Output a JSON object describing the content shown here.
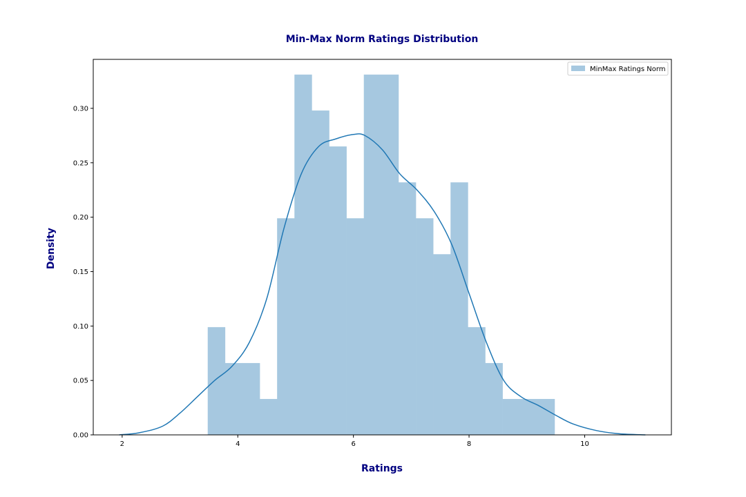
{
  "chart_data": {
    "type": "bar",
    "title": "Min-Max Norm Ratings Distribution",
    "xlabel": "Ratings",
    "ylabel": "Density",
    "xlim": [
      1.5,
      11.5
    ],
    "ylim": [
      0,
      0.345
    ],
    "x_ticks": [
      2,
      4,
      6,
      8,
      10
    ],
    "x_tick_labels": [
      "2",
      "4",
      "6",
      "8",
      "10"
    ],
    "y_ticks": [
      0.0,
      0.05,
      0.1,
      0.15,
      0.2,
      0.25,
      0.3
    ],
    "y_tick_labels": [
      "0.00",
      "0.05",
      "0.10",
      "0.15",
      "0.20",
      "0.25",
      "0.30"
    ],
    "grid": false,
    "legend": {
      "position": "top-right",
      "entries": [
        "MinMax Ratings Norm"
      ]
    },
    "histogram": {
      "name": "MinMax Ratings Norm",
      "color": "#a6c8e0",
      "bin_edges": [
        3.48,
        3.78,
        4.08,
        4.38,
        4.68,
        4.98,
        5.28,
        5.58,
        5.88,
        6.18,
        6.48,
        6.78,
        7.08,
        7.38,
        7.68,
        7.98,
        8.28,
        8.58,
        8.88,
        9.18,
        9.48
      ],
      "densities": [
        0.099,
        0.066,
        0.066,
        0.033,
        0.199,
        0.331,
        0.298,
        0.265,
        0.199,
        0.331,
        0.331,
        0.232,
        0.199,
        0.166,
        0.232,
        0.099,
        0.066,
        0.033,
        0.033,
        0.033
      ]
    },
    "kde": {
      "color": "#1f77b4",
      "x": [
        1.95,
        2.3,
        2.7,
        3.0,
        3.3,
        3.6,
        3.9,
        4.2,
        4.5,
        4.8,
        5.1,
        5.4,
        5.7,
        6.0,
        6.2,
        6.5,
        6.8,
        7.1,
        7.4,
        7.7,
        8.0,
        8.3,
        8.6,
        8.9,
        9.2,
        9.5,
        9.8,
        10.2,
        10.6,
        11.05
      ],
      "y": [
        0.0,
        0.002,
        0.008,
        0.02,
        0.035,
        0.05,
        0.063,
        0.085,
        0.125,
        0.19,
        0.24,
        0.265,
        0.272,
        0.276,
        0.275,
        0.262,
        0.24,
        0.225,
        0.205,
        0.175,
        0.13,
        0.085,
        0.05,
        0.035,
        0.027,
        0.018,
        0.01,
        0.004,
        0.001,
        0.0
      ]
    }
  }
}
